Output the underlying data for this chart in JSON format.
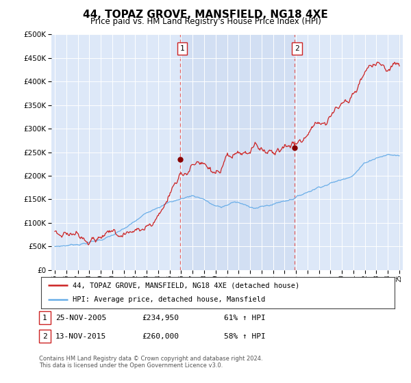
{
  "title": "44, TOPAZ GROVE, MANSFIELD, NG18 4XE",
  "subtitle": "Price paid vs. HM Land Registry's House Price Index (HPI)",
  "ytick_values": [
    0,
    50000,
    100000,
    150000,
    200000,
    250000,
    300000,
    350000,
    400000,
    450000,
    500000
  ],
  "ylim": [
    0,
    500000
  ],
  "xlim_start": 1994.7,
  "xlim_end": 2025.3,
  "purchase1_x": 2005.9,
  "purchase1_y": 234950,
  "purchase2_x": 2015.87,
  "purchase2_y": 260000,
  "hpi_color": "#6aaee8",
  "price_color": "#cc2222",
  "vline_color": "#e06060",
  "legend_entry1": "44, TOPAZ GROVE, MANSFIELD, NG18 4XE (detached house)",
  "legend_entry2": "HPI: Average price, detached house, Mansfield",
  "table_row1": [
    "1",
    "25-NOV-2005",
    "£234,950",
    "61% ↑ HPI"
  ],
  "table_row2": [
    "2",
    "13-NOV-2015",
    "£260,000",
    "58% ↑ HPI"
  ],
  "footnote": "Contains HM Land Registry data © Crown copyright and database right 2024.\nThis data is licensed under the Open Government Licence v3.0.",
  "background_color": "#ffffff",
  "plot_bg_color": "#dde8f8"
}
